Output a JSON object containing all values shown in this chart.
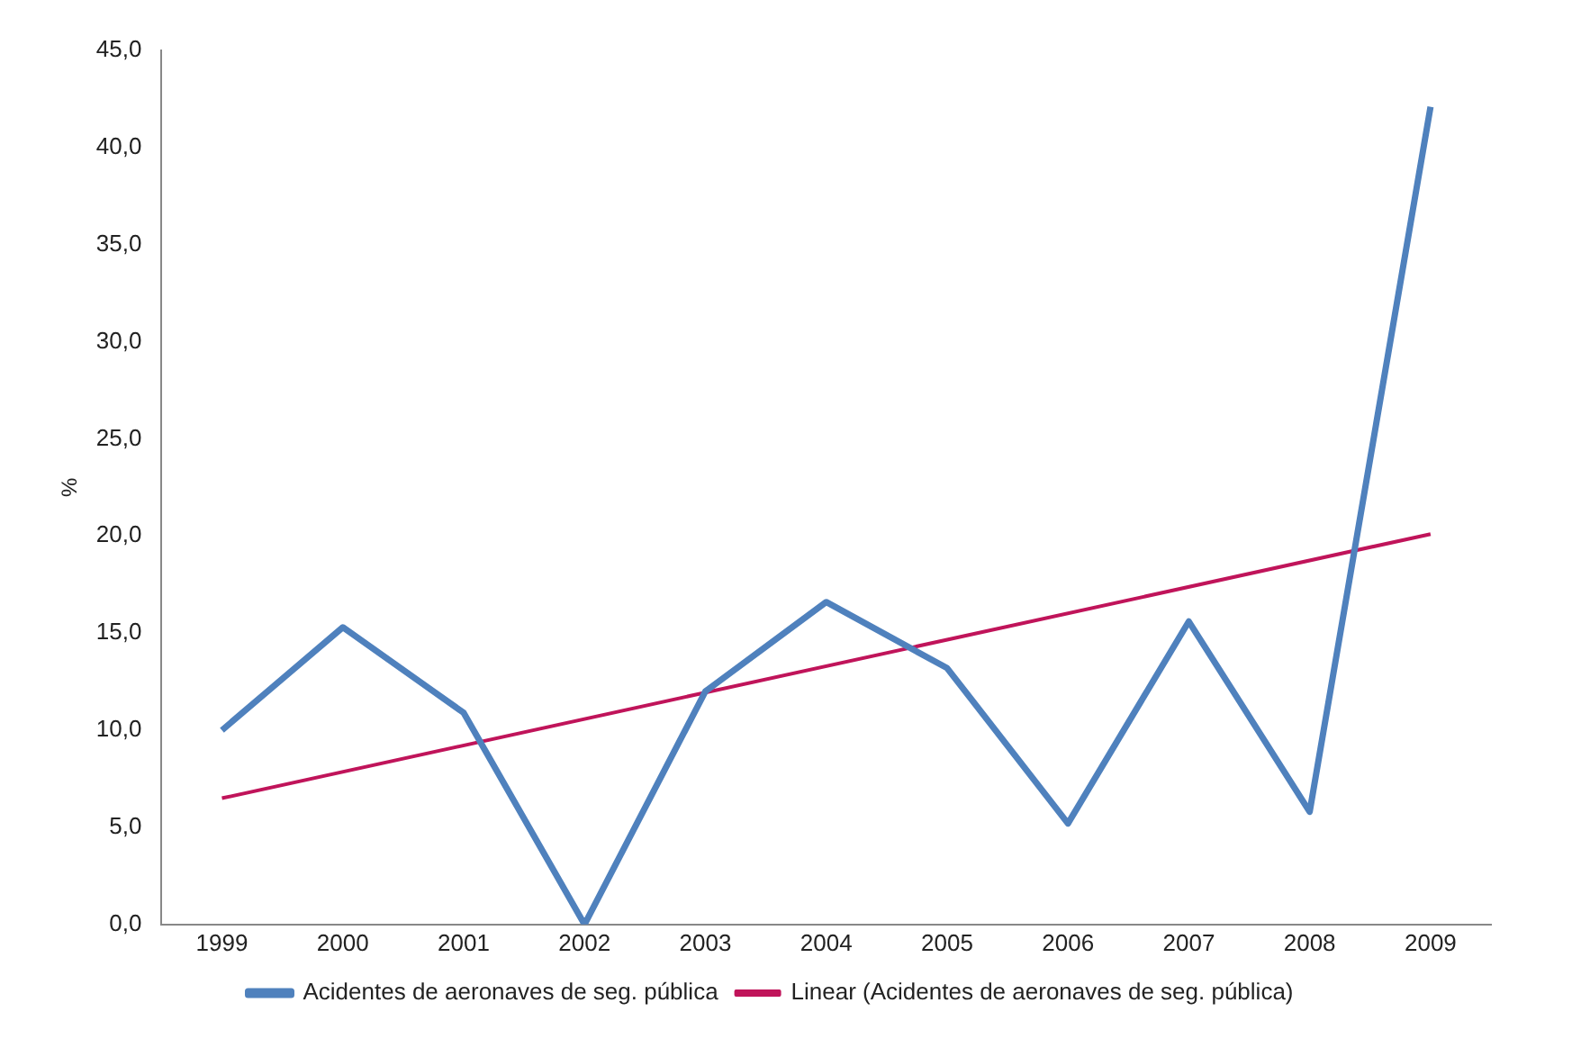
{
  "chart_data": {
    "type": "line",
    "ylabel": "%",
    "categories": [
      "1999",
      "2000",
      "2001",
      "2002",
      "2003",
      "2004",
      "2005",
      "2006",
      "2007",
      "2008",
      "2009"
    ],
    "series": [
      {
        "name": "Acidentes de aeronaves de seg. pública",
        "color": "#4f81bd",
        "values": [
          10.0,
          15.3,
          10.9,
          0.0,
          12.0,
          16.6,
          13.2,
          5.2,
          15.6,
          5.8,
          42.1
        ]
      },
      {
        "name": "Linear (Acidentes de aeronaves de seg. pública)",
        "color": "#c0145a",
        "values": [
          6.5,
          null,
          null,
          null,
          null,
          null,
          null,
          null,
          null,
          null,
          20.1
        ]
      }
    ],
    "ylim": [
      0,
      45
    ],
    "yticks": [
      {
        "value": 0,
        "label": "0,0"
      },
      {
        "value": 5,
        "label": "5,0"
      },
      {
        "value": 10,
        "label": "10,0"
      },
      {
        "value": 15,
        "label": "15,0"
      },
      {
        "value": 20,
        "label": "20,0"
      },
      {
        "value": 25,
        "label": "25,0"
      },
      {
        "value": 30,
        "label": "30,0"
      },
      {
        "value": 35,
        "label": "35,0"
      },
      {
        "value": 40,
        "label": "40,0"
      },
      {
        "value": 45,
        "label": "45,0"
      }
    ],
    "grid": false,
    "legend": "bottom",
    "marker": "none"
  }
}
